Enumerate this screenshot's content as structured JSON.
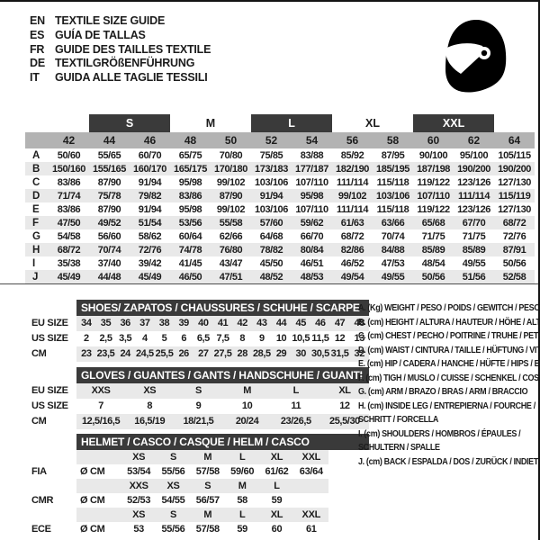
{
  "colors": {
    "bar_dark": "#3a3a3a",
    "band_gray": "#b3b3b3",
    "row_alt": "#e9e9e9",
    "logo_black": "#000000"
  },
  "languages": [
    {
      "code": "EN",
      "text": "TEXTILE SIZE GUIDE"
    },
    {
      "code": "ES",
      "text": "GUÍA DE TALLAS"
    },
    {
      "code": "FR",
      "text": "GUIDE DES TAILLES TEXTILE"
    },
    {
      "code": "DE",
      "text": "TEXTILGRÖßENFÜHRUNG"
    },
    {
      "code": "IT",
      "text": "GUIDA ALLE TAGLIE TESSILI"
    }
  ],
  "main_table": {
    "group_headers": [
      {
        "label": "",
        "dark": false,
        "span": 2
      },
      {
        "label": "S",
        "dark": true,
        "span": 2
      },
      {
        "label": "M",
        "dark": false,
        "span": 2
      },
      {
        "label": "L",
        "dark": true,
        "span": 2
      },
      {
        "label": "XL",
        "dark": false,
        "span": 2
      },
      {
        "label": "XXL",
        "dark": true,
        "span": 2
      },
      {
        "label": "",
        "dark": false,
        "span": 1
      }
    ],
    "sizes": [
      "42",
      "44",
      "46",
      "48",
      "50",
      "52",
      "54",
      "56",
      "58",
      "60",
      "62",
      "64"
    ],
    "rows": [
      {
        "label": "A",
        "values": [
          "50/60",
          "55/65",
          "60/70",
          "65/75",
          "70/80",
          "75/85",
          "83/88",
          "85/92",
          "87/95",
          "90/100",
          "95/100",
          "105/115"
        ]
      },
      {
        "label": "B",
        "values": [
          "150/160",
          "155/165",
          "160/170",
          "165/175",
          "170/180",
          "173/183",
          "177/187",
          "182/190",
          "185/195",
          "187/198",
          "190/200",
          "190/200"
        ]
      },
      {
        "label": "C",
        "values": [
          "83/86",
          "87/90",
          "91/94",
          "95/98",
          "99/102",
          "103/106",
          "107/110",
          "111/114",
          "115/118",
          "119/122",
          "123/126",
          "127/130"
        ]
      },
      {
        "label": "D",
        "values": [
          "71/74",
          "75/78",
          "79/82",
          "83/86",
          "87/90",
          "91/94",
          "95/98",
          "99/102",
          "103/106",
          "107/110",
          "111/114",
          "115/119"
        ]
      },
      {
        "label": "E",
        "values": [
          "83/86",
          "87/90",
          "91/94",
          "95/98",
          "99/102",
          "103/106",
          "107/110",
          "111/114",
          "115/118",
          "119/122",
          "123/126",
          "127/130"
        ]
      },
      {
        "label": "F",
        "values": [
          "47/50",
          "49/52",
          "51/54",
          "53/56",
          "55/58",
          "57/60",
          "59/62",
          "61/63",
          "63/66",
          "65/68",
          "67/70",
          "68/72"
        ]
      },
      {
        "label": "G",
        "values": [
          "54/58",
          "56/60",
          "58/62",
          "60/64",
          "62/66",
          "64/68",
          "66/70",
          "68/72",
          "70/74",
          "71/75",
          "71/75",
          "72/76"
        ]
      },
      {
        "label": "H",
        "values": [
          "68/72",
          "70/74",
          "72/76",
          "74/78",
          "76/80",
          "78/82",
          "80/84",
          "82/86",
          "84/88",
          "85/89",
          "85/89",
          "87/91"
        ]
      },
      {
        "label": "I",
        "values": [
          "35/38",
          "37/40",
          "39/42",
          "41/45",
          "43/47",
          "45/50",
          "46/51",
          "46/52",
          "47/53",
          "48/54",
          "49/55",
          "50/56"
        ]
      },
      {
        "label": "J",
        "values": [
          "45/49",
          "44/48",
          "45/49",
          "46/50",
          "47/51",
          "48/52",
          "48/53",
          "49/54",
          "49/55",
          "50/56",
          "51/56",
          "52/58"
        ]
      }
    ]
  },
  "shoes": {
    "title": "SHOES/ ZAPATOS / CHAUSSURES / SCHUHE / SCARPE",
    "rows": [
      {
        "label": "EU SIZE",
        "shaded": true,
        "cells": [
          "34",
          "35",
          "36",
          "37",
          "38",
          "39",
          "40",
          "41",
          "42",
          "43",
          "44",
          "45",
          "46",
          "47",
          "48"
        ]
      },
      {
        "label": "US SIZE",
        "shaded": false,
        "cells": [
          "2",
          "2,5",
          "3,5",
          "4",
          "5",
          "6",
          "6,5",
          "7,5",
          "8",
          "9",
          "10",
          "10,5",
          "11,5",
          "12",
          "13"
        ]
      },
      {
        "label": "CM",
        "shaded": true,
        "cells": [
          "23",
          "23,5",
          "24",
          "24,5",
          "25,5",
          "26",
          "27",
          "27,5",
          "28",
          "28,5",
          "29",
          "30",
          "30,5",
          "31,5",
          "32"
        ]
      }
    ]
  },
  "gloves": {
    "title": "GLOVES / GUANTES / GANTS / HANDSCHUHE / GUANTI",
    "rows": [
      {
        "label": "EU SIZE",
        "shaded": true,
        "cells": [
          "XXS",
          "XS",
          "S",
          "M",
          "L",
          "XL"
        ]
      },
      {
        "label": "US SIZE",
        "shaded": false,
        "cells": [
          "7",
          "8",
          "9",
          "10",
          "11",
          "12"
        ]
      },
      {
        "label": "CM",
        "shaded": true,
        "cells": [
          "12,5/16,5",
          "16,5/19",
          "18/21,5",
          "20/24",
          "23/26,5",
          "25,5/30"
        ]
      }
    ]
  },
  "helmet": {
    "title": "HELMET / CASCO / CASQUE / HELM / CASCO",
    "unit": "Ø CM",
    "rows": [
      {
        "type": "sizes",
        "label": "",
        "cells": [
          "XS",
          "S",
          "M",
          "L",
          "XL",
          "XXL"
        ]
      },
      {
        "type": "values",
        "label": "FIA",
        "cells": [
          "53/54",
          "55/56",
          "57/58",
          "59/60",
          "61/62",
          "63/64"
        ]
      },
      {
        "type": "sizes",
        "label": "",
        "cells": [
          "XXS",
          "XS",
          "S",
          "M",
          "L",
          ""
        ]
      },
      {
        "type": "values",
        "label": "CMR",
        "cells": [
          "52/53",
          "54/55",
          "56/57",
          "58",
          "59",
          ""
        ]
      },
      {
        "type": "sizes",
        "label": "",
        "cells": [
          "XS",
          "S",
          "M",
          "L",
          "XL",
          "XXL"
        ]
      },
      {
        "type": "values",
        "label": "ECE",
        "cells": [
          "53",
          "55/56",
          "57/58",
          "59",
          "60",
          "61"
        ]
      }
    ]
  },
  "legend": [
    "A. (Kg) WEIGHT / PESO / POIDS / GEWITCH / PESO",
    "B. (cm) HEIGHT / ALTURA / HAUTEUR / HÖHE / ALTEZZA",
    "C. (cm) CHEST / PECHO / POITRINE / TRUHE / PETTO",
    "D. (cm) WAIST / CINTURA / TAILLE / HÜFTUNG / VITA",
    "E. (cm) HIP / CADERA / HANCHE / HÜFTE / HIPS / BACINO",
    "F. (cm) TIGH / MUSLO / CUISSE / SCHENKEL / COSCIA",
    "G. (cm) ARM / BRAZO / BRAS / ARM / BRACCIO",
    "H. (cm) INSIDE LEG / ENTREPIERNA / FOURCHE / SCHRITT / FORCELLA",
    "I. (cm) SHOULDERS / HOMBROS / ÉPAULES / SCHULTERN / SPALLE",
    "J. (cm) BACK / ESPALDA / DOS / ZURÜCK / INDIETRO"
  ]
}
